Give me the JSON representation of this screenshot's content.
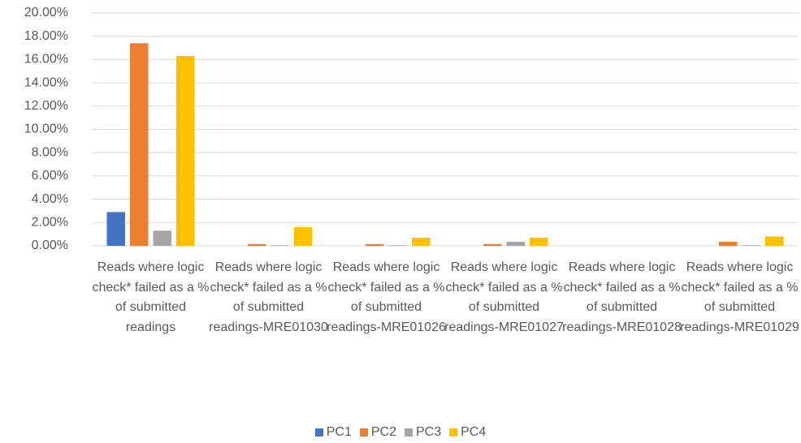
{
  "chart_data": {
    "type": "bar",
    "categories": [
      "Reads where logic check* failed as a % of submitted readings",
      "Reads where logic check* failed as a % of submitted readings-MRE01030",
      "Reads where logic check* failed as a % of submitted readings-MRE01026",
      "Reads where logic check* failed as a % of submitted readings-MRE01027",
      "Reads where logic check* failed as a % of submitted readings-MRE01028",
      "Reads where logic check* failed as a % of submitted readings-MRE01029"
    ],
    "series": [
      {
        "name": "PC1",
        "color": "#4472c4",
        "values": [
          2.9,
          0,
          0,
          0,
          0,
          0
        ]
      },
      {
        "name": "PC2",
        "color": "#ed7d31",
        "values": [
          17.4,
          0.15,
          0.15,
          0.15,
          0,
          0.35
        ]
      },
      {
        "name": "PC3",
        "color": "#a5a5a5",
        "values": [
          1.3,
          0.05,
          0.05,
          0.35,
          0,
          0.05
        ]
      },
      {
        "name": "PC4",
        "color": "#ffc000",
        "values": [
          16.3,
          1.6,
          0.7,
          0.7,
          0,
          0.8
        ]
      }
    ],
    "ylim": [
      0,
      20
    ],
    "yticks": [
      {
        "value": 0,
        "label": "0.00%"
      },
      {
        "value": 2,
        "label": "2.00%"
      },
      {
        "value": 4,
        "label": "4.00%"
      },
      {
        "value": 6,
        "label": "6.00%"
      },
      {
        "value": 8,
        "label": "8.00%"
      },
      {
        "value": 10,
        "label": "10.00%"
      },
      {
        "value": 12,
        "label": "12.00%"
      },
      {
        "value": 14,
        "label": "14.00%"
      },
      {
        "value": 16,
        "label": "16.00%"
      },
      {
        "value": 18,
        "label": "18.00%"
      },
      {
        "value": 20,
        "label": "20.00%"
      }
    ],
    "grid": true,
    "legend": "bottom"
  }
}
